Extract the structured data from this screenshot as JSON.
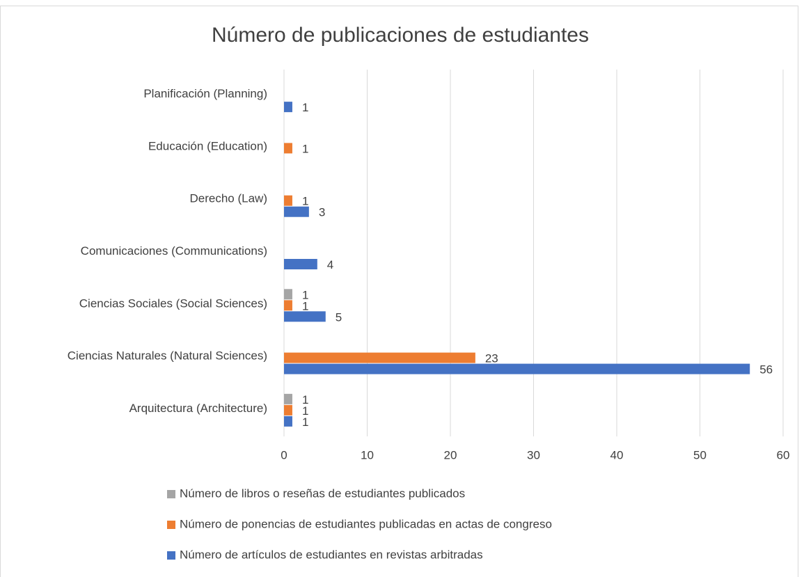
{
  "chart_data": {
    "type": "bar",
    "orientation": "horizontal",
    "title": "Número de publicaciones de estudiantes",
    "categories": [
      "Arquitectura (Architecture)",
      "Ciencias Naturales (Natural Sciences)",
      "Ciencias Sociales (Social Sciences)",
      "Comunicaciones (Communications)",
      "Derecho (Law)",
      "Educación (Education)",
      "Planificación (Planning)"
    ],
    "series": [
      {
        "name": "Número de artículos de estudiantes en revistas arbitradas",
        "color": "#4472c4",
        "values": [
          1,
          56,
          5,
          4,
          3,
          null,
          1
        ]
      },
      {
        "name": "Número de ponencias de estudiantes publicadas en actas de congreso",
        "color": "#ed7d31",
        "values": [
          1,
          23,
          1,
          null,
          1,
          1,
          null
        ]
      },
      {
        "name": "Número de libros o reseñas de estudiantes publicados",
        "color": "#a5a5a5",
        "values": [
          1,
          null,
          1,
          null,
          null,
          null,
          null
        ]
      }
    ],
    "xlim": [
      0,
      60
    ],
    "xticks": [
      0,
      10,
      20,
      30,
      40,
      50,
      60
    ],
    "grid": true,
    "legend": "bottom"
  }
}
